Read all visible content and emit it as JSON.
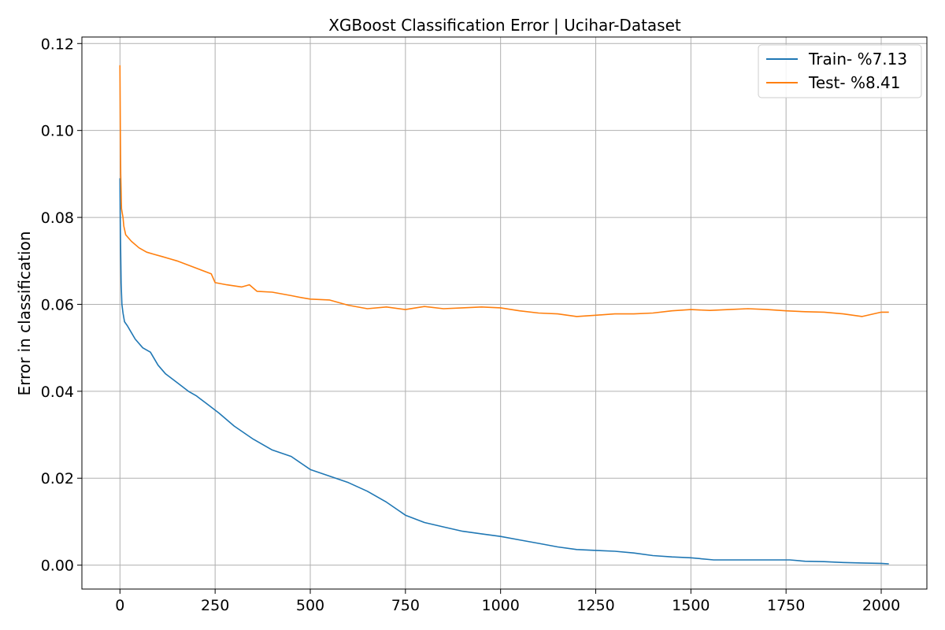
{
  "chart_data": {
    "type": "line",
    "title": "XGBoost Classification Error | Ucihar-Dataset",
    "xlabel": "",
    "ylabel": "Error in classification",
    "xlim": [
      -100,
      2120
    ],
    "ylim": [
      -0.0055,
      0.1215
    ],
    "xticks": [
      0,
      250,
      500,
      750,
      1000,
      1250,
      1500,
      1750,
      2000
    ],
    "xtick_labels": [
      "0",
      "250",
      "500",
      "750",
      "1000",
      "1250",
      "1500",
      "1750",
      "2000"
    ],
    "yticks": [
      0.0,
      0.02,
      0.04,
      0.06,
      0.08,
      0.1,
      0.12
    ],
    "ytick_labels": [
      "0.00",
      "0.02",
      "0.04",
      "0.06",
      "0.08",
      "0.10",
      "0.12"
    ],
    "grid": true,
    "legend_position": "top-right",
    "series": [
      {
        "name": "Train- %7.13",
        "color": "#1f77b4",
        "x": [
          0,
          1,
          3,
          5,
          8,
          12,
          20,
          30,
          40,
          60,
          80,
          100,
          120,
          150,
          180,
          200,
          230,
          260,
          300,
          350,
          400,
          450,
          500,
          550,
          600,
          650,
          700,
          750,
          800,
          850,
          900,
          950,
          1000,
          1050,
          1100,
          1150,
          1200,
          1250,
          1300,
          1350,
          1400,
          1450,
          1500,
          1560,
          1600,
          1700,
          1760,
          1800,
          1850,
          1900,
          1950,
          2000,
          2020
        ],
        "y": [
          0.089,
          0.078,
          0.065,
          0.06,
          0.058,
          0.056,
          0.055,
          0.0535,
          0.052,
          0.05,
          0.049,
          0.046,
          0.044,
          0.042,
          0.04,
          0.039,
          0.037,
          0.035,
          0.032,
          0.029,
          0.0265,
          0.025,
          0.022,
          0.0205,
          0.019,
          0.017,
          0.0145,
          0.0115,
          0.0098,
          0.0088,
          0.0078,
          0.0072,
          0.0066,
          0.0058,
          0.005,
          0.0042,
          0.0036,
          0.0034,
          0.0032,
          0.0028,
          0.0022,
          0.0019,
          0.0017,
          0.0012,
          0.0012,
          0.0012,
          0.0012,
          0.0009,
          0.0008,
          0.0006,
          0.0005,
          0.0004,
          0.0003
        ]
      },
      {
        "name": "Test-  %8.41",
        "color": "#ff7f0e",
        "x": [
          0,
          1,
          2,
          4,
          6,
          8,
          10,
          15,
          20,
          30,
          50,
          70,
          90,
          110,
          130,
          150,
          180,
          210,
          240,
          250,
          280,
          320,
          340,
          360,
          400,
          450,
          480,
          500,
          550,
          600,
          650,
          700,
          750,
          800,
          850,
          900,
          950,
          1000,
          1050,
          1100,
          1150,
          1200,
          1250,
          1300,
          1350,
          1400,
          1450,
          1500,
          1550,
          1600,
          1650,
          1700,
          1750,
          1800,
          1850,
          1900,
          1950,
          2000,
          2020
        ],
        "y": [
          0.115,
          0.1,
          0.09,
          0.082,
          0.081,
          0.08,
          0.078,
          0.076,
          0.0755,
          0.0745,
          0.073,
          0.072,
          0.0715,
          0.071,
          0.0705,
          0.07,
          0.069,
          0.068,
          0.067,
          0.065,
          0.0645,
          0.064,
          0.0645,
          0.063,
          0.0628,
          0.062,
          0.0615,
          0.0612,
          0.061,
          0.0598,
          0.059,
          0.0594,
          0.0588,
          0.0595,
          0.059,
          0.0592,
          0.0594,
          0.0592,
          0.0585,
          0.058,
          0.0578,
          0.0572,
          0.0575,
          0.0578,
          0.0578,
          0.058,
          0.0585,
          0.0588,
          0.0586,
          0.0588,
          0.059,
          0.0588,
          0.0585,
          0.0583,
          0.0582,
          0.0578,
          0.0572,
          0.0582,
          0.0582
        ]
      }
    ]
  }
}
